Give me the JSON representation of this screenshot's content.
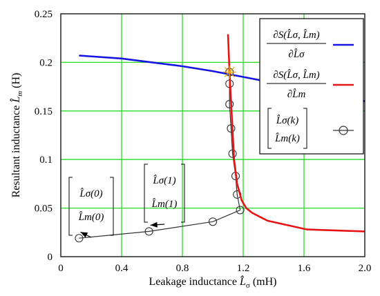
{
  "chart_data": {
    "type": "line",
    "xlabel": "Leakage inductance",
    "xlabel_var": "L̂",
    "xlabel_sub": "σ",
    "xlabel_unit": "(mH)",
    "ylabel": "Resultant inductance",
    "ylabel_var": "L̂",
    "ylabel_sub": "m",
    "ylabel_unit": "(H)",
    "xlim": [
      0,
      2.0
    ],
    "ylim": [
      0,
      0.25
    ],
    "xticks": [
      0,
      0.4,
      0.8,
      1.2,
      1.6,
      2.0
    ],
    "xtick_labels": [
      "0",
      "0.4",
      "0.8",
      "1.2",
      "1.6",
      "2.0"
    ],
    "yticks": [
      0,
      0.05,
      0.1,
      0.15,
      0.2,
      0.25
    ],
    "ytick_labels": [
      "0",
      "0.05",
      "0.1",
      "0.15",
      "0.2",
      "0.25"
    ],
    "grid": true,
    "grid_color": "#22dd22",
    "legend_position": "top-right",
    "series": [
      {
        "name": "∂S(L̂σ, L̂m)/∂L̂σ",
        "color": "#1414e6",
        "style": "line",
        "x": [
          0.12,
          0.4,
          0.6,
          0.8,
          1.0,
          1.2,
          1.4,
          1.6,
          1.8,
          2.0
        ],
        "y": [
          0.207,
          0.204,
          0.2,
          0.196,
          0.191,
          0.185,
          0.179,
          0.173,
          0.166,
          0.16
        ]
      },
      {
        "name": "∂S(L̂σ, L̂m)/∂L̂m",
        "color": "#e61414",
        "style": "line",
        "x": [
          1.1,
          1.11,
          1.12,
          1.13,
          1.14,
          1.16,
          1.19,
          1.22,
          1.26,
          1.36,
          1.62,
          2.0
        ],
        "y": [
          0.229,
          0.19,
          0.16,
          0.13,
          0.1,
          0.075,
          0.058,
          0.05,
          0.045,
          0.037,
          0.028,
          0.026
        ]
      },
      {
        "name": "[L̂σ(k); L̂m(k)]",
        "color": "#333333",
        "style": "line-marker",
        "marker": "open-circle",
        "x": [
          0.12,
          0.58,
          1.0,
          1.18,
          1.16,
          1.15,
          1.13,
          1.12,
          1.11,
          1.11,
          1.11
        ],
        "y": [
          0.019,
          0.026,
          0.036,
          0.048,
          0.064,
          0.083,
          0.106,
          0.132,
          0.157,
          0.178,
          0.19
        ]
      }
    ],
    "intersection_marker": {
      "x": 1.11,
      "y": 0.19,
      "color": "#f0a000"
    },
    "annotations": [
      {
        "top": "L̂σ(0)",
        "bottom": "L̂m(0)",
        "points_to": {
          "x": 0.12,
          "y": 0.019
        }
      },
      {
        "top": "L̂σ(1)",
        "bottom": "L̂m(1)",
        "points_to": {
          "x": 0.58,
          "y": 0.026
        }
      }
    ]
  }
}
